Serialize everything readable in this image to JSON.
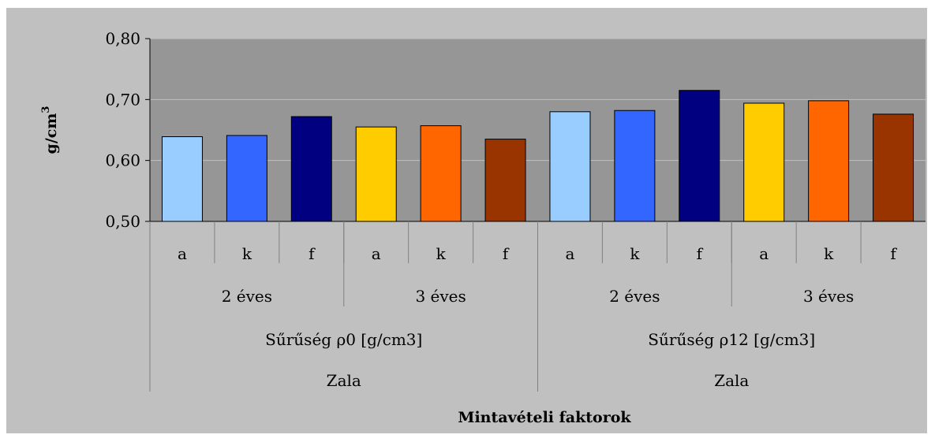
{
  "chart_data": {
    "type": "bar",
    "ylabel": "g/cm",
    "ylabel_superscript": "3",
    "xlabel": "Mintavételi faktorok",
    "ylim": [
      0.5,
      0.8
    ],
    "yticks": [
      "0,50",
      "0,60",
      "0,70",
      "0,80"
    ],
    "ytick_values": [
      0.5,
      0.6,
      0.7,
      0.8
    ],
    "grid": true,
    "categories": [
      "a",
      "k",
      "f",
      "a",
      "k",
      "f",
      "a",
      "k",
      "f",
      "a",
      "k",
      "f"
    ],
    "values": [
      0.639,
      0.641,
      0.672,
      0.655,
      0.657,
      0.635,
      0.68,
      0.682,
      0.715,
      0.694,
      0.698,
      0.676
    ],
    "bar_colors": [
      "#99ccff",
      "#3366ff",
      "#000080",
      "#ffcc00",
      "#ff6600",
      "#993300",
      "#99ccff",
      "#3366ff",
      "#000080",
      "#ffcc00",
      "#ff6600",
      "#993300"
    ],
    "group_level_1": [
      "2 éves",
      "3 éves",
      "2 éves",
      "3 éves"
    ],
    "group_level_2": [
      "Sűrűség ρ0 [g/cm3]",
      "Sűrűség ρ12 [g/cm3]"
    ],
    "group_level_3": [
      "Zala",
      "Zala"
    ],
    "colors": {
      "outer_background": "#c0c0c0",
      "plot_background": "#969696",
      "gridline": "#c0c0c0",
      "axis": "#000000",
      "separator": "#808080"
    }
  }
}
